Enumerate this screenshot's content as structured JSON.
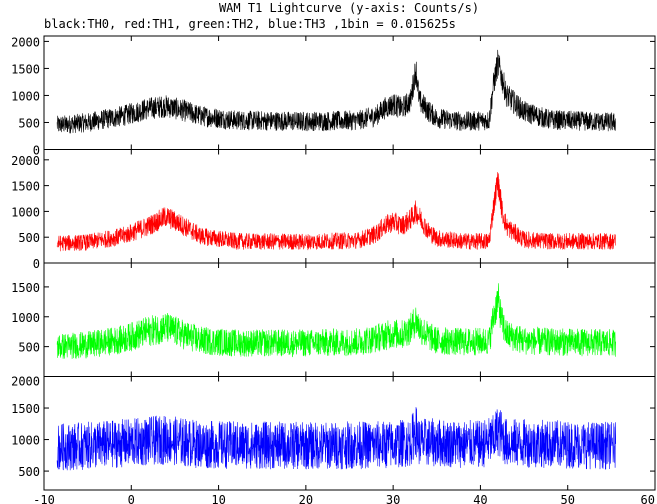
{
  "chart_data": {
    "type": "line",
    "title": "WAM T1 Lightcurve (y-axis: Counts/s)",
    "subtitle": "black:TH0, red:TH1, green:TH2, blue:TH3 ,1bin = 0.015625s",
    "xlim": [
      -10,
      60
    ],
    "x_ticks": [
      -10,
      0,
      10,
      20,
      30,
      40,
      50,
      60
    ],
    "x_range_data": [
      -8.5,
      55.5
    ],
    "panels": [
      {
        "name": "TH0",
        "color": "#000000",
        "ylim": [
          0,
          2100
        ],
        "y_ticks": [
          0,
          500,
          1000,
          1500,
          2000
        ],
        "baseline_level": 500,
        "noise_halfwidth": 180,
        "envelope": [
          [
            -8.5,
            450
          ],
          [
            -5,
            500
          ],
          [
            -1,
            620
          ],
          [
            2,
            760
          ],
          [
            4,
            800
          ],
          [
            6,
            720
          ],
          [
            8,
            620
          ],
          [
            12,
            540
          ],
          [
            20,
            520
          ],
          [
            26,
            540
          ],
          [
            28,
            620
          ],
          [
            29,
            760
          ],
          [
            30,
            840
          ],
          [
            31,
            760
          ],
          [
            32,
            900
          ],
          [
            32.6,
            1500
          ],
          [
            33,
            900
          ],
          [
            34,
            720
          ],
          [
            35,
            580
          ],
          [
            38,
            520
          ],
          [
            41,
            540
          ],
          [
            41.5,
            1200
          ],
          [
            42,
            1600
          ],
          [
            43,
            1000
          ],
          [
            45,
            700
          ],
          [
            48,
            550
          ],
          [
            55.5,
            500
          ]
        ]
      },
      {
        "name": "TH1",
        "color": "#ff0000",
        "ylim": [
          0,
          2200
        ],
        "y_ticks": [
          0,
          500,
          1000,
          1500,
          2000
        ],
        "baseline_level": 400,
        "noise_halfwidth": 160,
        "envelope": [
          [
            -8.5,
            380
          ],
          [
            -5,
            400
          ],
          [
            -1,
            520
          ],
          [
            2,
            720
          ],
          [
            4,
            900
          ],
          [
            6,
            720
          ],
          [
            8,
            520
          ],
          [
            12,
            420
          ],
          [
            20,
            410
          ],
          [
            26,
            440
          ],
          [
            28,
            560
          ],
          [
            29,
            720
          ],
          [
            30,
            800
          ],
          [
            31,
            720
          ],
          [
            32,
            850
          ],
          [
            32.6,
            1000
          ],
          [
            33,
            900
          ],
          [
            34,
            620
          ],
          [
            35,
            480
          ],
          [
            38,
            420
          ],
          [
            41,
            420
          ],
          [
            41.5,
            1100
          ],
          [
            42,
            1600
          ],
          [
            42.5,
            1000
          ],
          [
            43,
            700
          ],
          [
            45,
            450
          ],
          [
            48,
            420
          ],
          [
            55.5,
            420
          ]
        ]
      },
      {
        "name": "TH2",
        "color": "#00ff00",
        "ylim": [
          0,
          1900
        ],
        "y_ticks": [
          500,
          1000,
          1500
        ],
        "baseline_level": 550,
        "noise_halfwidth": 230,
        "envelope": [
          [
            -8.5,
            500
          ],
          [
            -5,
            530
          ],
          [
            -1,
            620
          ],
          [
            2,
            760
          ],
          [
            4,
            820
          ],
          [
            6,
            700
          ],
          [
            8,
            600
          ],
          [
            12,
            560
          ],
          [
            20,
            560
          ],
          [
            26,
            580
          ],
          [
            28,
            640
          ],
          [
            30,
            720
          ],
          [
            31,
            700
          ],
          [
            32,
            800
          ],
          [
            32.6,
            950
          ],
          [
            33,
            820
          ],
          [
            34,
            680
          ],
          [
            35,
            600
          ],
          [
            38,
            580
          ],
          [
            41,
            590
          ],
          [
            41.5,
            1000
          ],
          [
            42,
            1300
          ],
          [
            42.5,
            900
          ],
          [
            43,
            700
          ],
          [
            45,
            600
          ],
          [
            48,
            580
          ],
          [
            55.5,
            560
          ]
        ]
      },
      {
        "name": "TH3",
        "color": "#0000ff",
        "ylim": [
          200,
          2000
        ],
        "y_ticks": [
          500,
          1000,
          1500,
          2000
        ],
        "baseline_level": 900,
        "noise_halfwidth": 380,
        "envelope": [
          [
            -8.5,
            880
          ],
          [
            -5,
            900
          ],
          [
            0,
            950
          ],
          [
            4,
            1000
          ],
          [
            8,
            920
          ],
          [
            20,
            900
          ],
          [
            30,
            920
          ],
          [
            32,
            960
          ],
          [
            32.6,
            1150
          ],
          [
            33,
            960
          ],
          [
            40,
            920
          ],
          [
            41.5,
            1000
          ],
          [
            42,
            1150
          ],
          [
            43,
            950
          ],
          [
            55.5,
            900
          ]
        ]
      }
    ]
  }
}
